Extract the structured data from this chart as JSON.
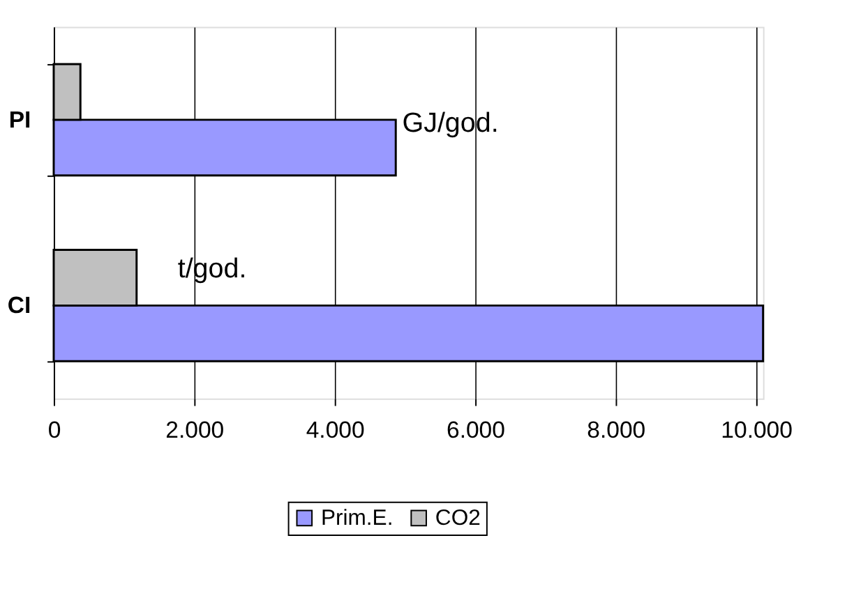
{
  "chart_data": {
    "type": "bar",
    "orientation": "horizontal",
    "categories": [
      "PI",
      "CI"
    ],
    "series": [
      {
        "name": "Prim.E.",
        "color": "#9999ff",
        "values": [
          4870,
          10100
        ]
      },
      {
        "name": "CO2",
        "color": "#c0c0c0",
        "values": [
          380,
          1180
        ]
      }
    ],
    "xlim": [
      0,
      10100
    ],
    "xticks": [
      0,
      {
        "value": 2000,
        "label": "2.000"
      },
      {
        "value": 4000,
        "label": "4.000"
      },
      {
        "value": 6000,
        "label": "6.000"
      },
      {
        "value": 8000,
        "label": "8.000"
      },
      {
        "value": 10000,
        "label": "10.000"
      }
    ],
    "grid": "x",
    "legend": "bottom",
    "annotations": [
      "GJ/god.",
      "t/god."
    ]
  }
}
